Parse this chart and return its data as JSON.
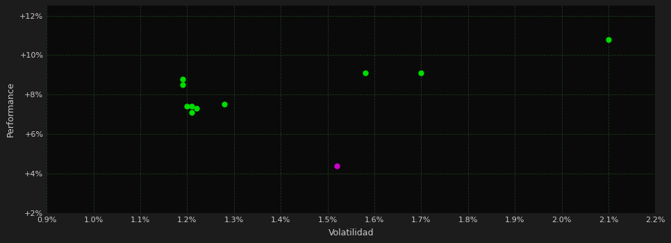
{
  "background_color": "#1c1c1c",
  "plot_bg_color": "#0a0a0a",
  "grid_color": "#1e3a1e",
  "tick_color": "#cccccc",
  "xlabel": "Volatilidad",
  "ylabel": "Performance",
  "xlim": [
    0.009,
    0.022
  ],
  "ylim": [
    0.02,
    0.125
  ],
  "xticks": [
    0.009,
    0.01,
    0.011,
    0.012,
    0.013,
    0.014,
    0.015,
    0.016,
    0.017,
    0.018,
    0.019,
    0.02,
    0.021,
    0.022
  ],
  "yticks": [
    0.02,
    0.04,
    0.06,
    0.08,
    0.1,
    0.12
  ],
  "green_points": [
    [
      0.0119,
      0.088
    ],
    [
      0.0119,
      0.085
    ],
    [
      0.012,
      0.074
    ],
    [
      0.0121,
      0.074
    ],
    [
      0.0122,
      0.073
    ],
    [
      0.0121,
      0.071
    ],
    [
      0.0128,
      0.075
    ],
    [
      0.0158,
      0.091
    ],
    [
      0.017,
      0.091
    ],
    [
      0.021,
      0.108
    ]
  ],
  "magenta_points": [
    [
      0.0152,
      0.044
    ]
  ],
  "green_color": "#00dd00",
  "magenta_color": "#cc00cc",
  "marker_size": 25
}
